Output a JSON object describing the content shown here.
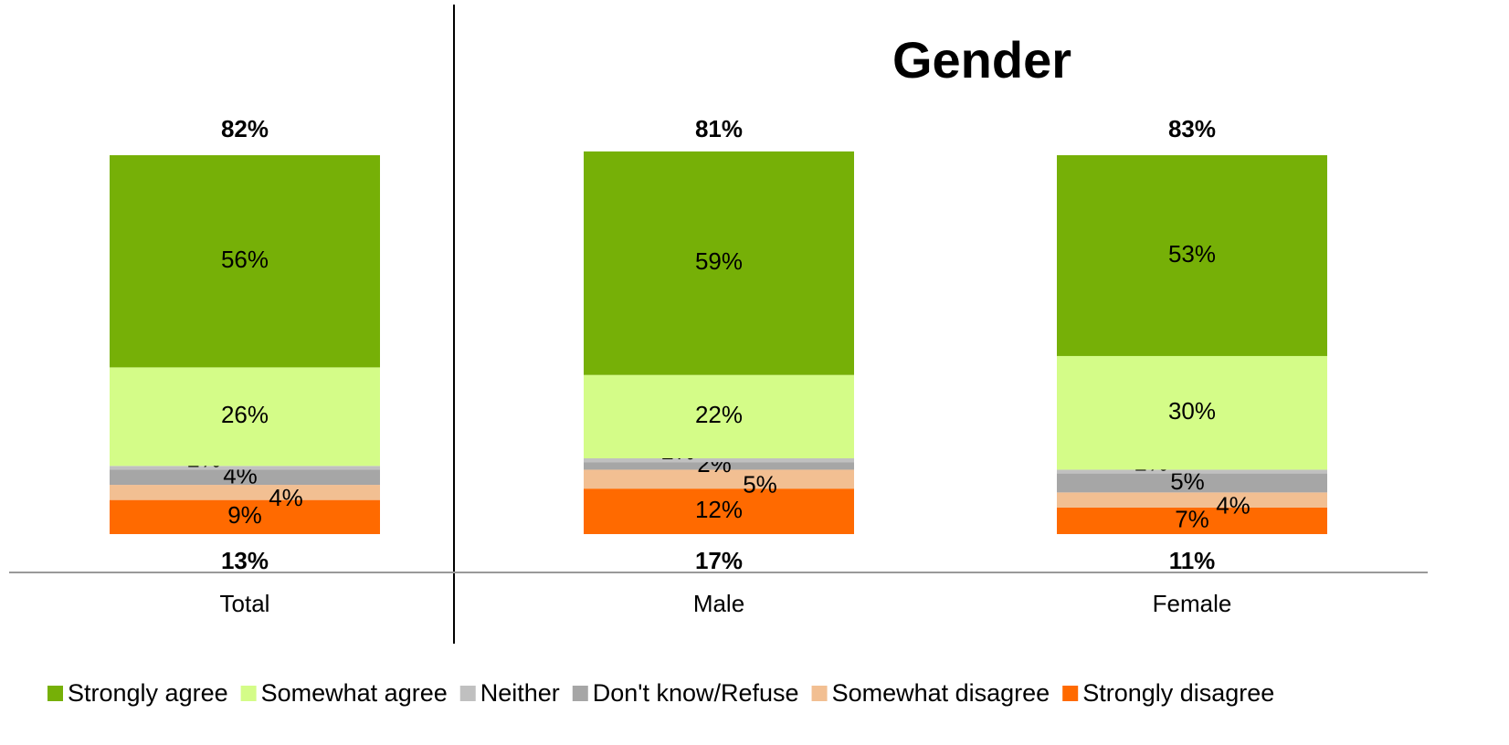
{
  "chart_data": {
    "type": "stacked_bar",
    "title": "Gender",
    "categories": [
      "Total",
      "Male",
      "Female"
    ],
    "ylim": [
      0,
      100
    ],
    "series": [
      {
        "name": "Strongly agree",
        "color": "#76b007",
        "values": [
          56,
          59,
          53
        ],
        "value_labels": [
          "56%",
          "59%",
          "53%"
        ]
      },
      {
        "name": "Somewhat agree",
        "color": "#d4fc88",
        "values": [
          26,
          22,
          30
        ],
        "value_labels": [
          "26%",
          "22%",
          "30%"
        ]
      },
      {
        "name": "Neither",
        "color": "#c0c0c0",
        "values": [
          1,
          1,
          1
        ],
        "value_labels": [
          "1%",
          "1%",
          "1%"
        ]
      },
      {
        "name": "Don't know/Refuse",
        "color": "#a6a6a6",
        "values": [
          4,
          2,
          5
        ],
        "value_labels": [
          "4%",
          "2%",
          "5%"
        ]
      },
      {
        "name": "Somewhat disagree",
        "color": "#f2bf92",
        "values": [
          4,
          5,
          4
        ],
        "value_labels": [
          "4%",
          "5%",
          "4%"
        ]
      },
      {
        "name": "Strongly disagree",
        "color": "#ff6a00",
        "values": [
          9,
          12,
          7
        ],
        "value_labels": [
          "9%",
          "12%",
          "7%"
        ]
      }
    ],
    "net_agree": {
      "values": [
        82,
        81,
        83
      ],
      "value_labels": [
        "82%",
        "81%",
        "83%"
      ]
    },
    "net_disagree": {
      "values": [
        13,
        17,
        11
      ],
      "value_labels": [
        "13%",
        "17%",
        "11%"
      ]
    }
  }
}
